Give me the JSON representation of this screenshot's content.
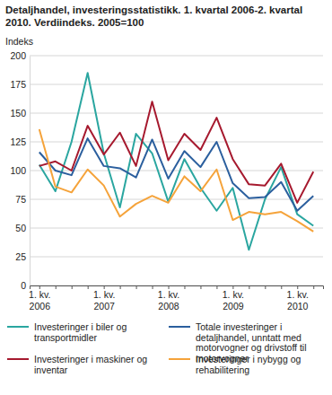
{
  "chart_data": {
    "type": "line",
    "title": "Detaljhandel, investeringsstatistikk. 1. kvartal 2006-2. kvartal 2010. Verdiindeks. 2005=100",
    "y_label": "Indeks",
    "categories": [
      "1. kv. 2006",
      null,
      null,
      null,
      "1. kv. 2007",
      null,
      null,
      null,
      "1. kv. 2008",
      null,
      null,
      null,
      "1. kv. 2009",
      null,
      null,
      null,
      "1. kv. 2010",
      null
    ],
    "series": [
      {
        "name": "Investeringer i biler og transportmidler",
        "color": "#2aa6a0",
        "values": [
          105,
          82,
          125,
          185,
          115,
          68,
          132,
          115,
          73,
          110,
          85,
          65,
          85,
          31,
          75,
          103,
          62,
          52
        ]
      },
      {
        "name": "Totale investeringer i detaljhandel, unntatt med motorvogner og drivstoff til motorvogner",
        "color": "#2b5f9e",
        "values": [
          116,
          100,
          96,
          128,
          104,
          102,
          94,
          127,
          93,
          117,
          103,
          125,
          89,
          76,
          77,
          90,
          65,
          78
        ]
      },
      {
        "name": "Investeringer i maskiner og inventar",
        "color": "#a6192e",
        "values": [
          104,
          108,
          100,
          139,
          114,
          133,
          104,
          160,
          109,
          132,
          118,
          146,
          110,
          88,
          87,
          106,
          72,
          99
        ]
      },
      {
        "name": "Investeringer i nybygg og rehabilitering",
        "color": "#f5a33a",
        "values": [
          136,
          86,
          81,
          101,
          87,
          60,
          71,
          78,
          72,
          95,
          82,
          101,
          57,
          64,
          62,
          64,
          56,
          47
        ]
      }
    ],
    "ylim": [
      0,
      200
    ],
    "yticks": [
      0,
      25,
      50,
      75,
      100,
      125,
      150,
      175,
      200
    ],
    "grid": true,
    "legend": "bottom"
  }
}
